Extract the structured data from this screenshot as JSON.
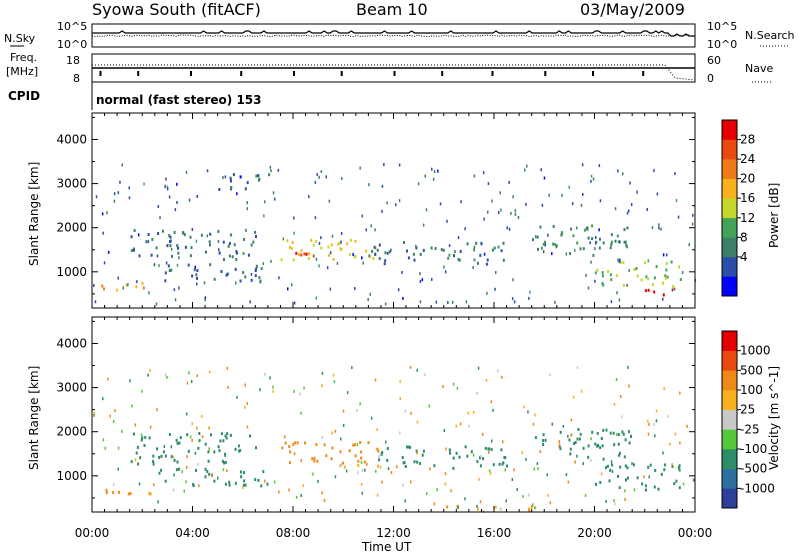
{
  "header": {
    "title": "Syowa South (fitACF)",
    "beam": "Beam 10",
    "date": "03/May/2009"
  },
  "nsky_panel": {
    "label": "N.Sky",
    "right_label": "N.Search",
    "ytick_top": "10^5",
    "ytick_bottom": "10^0",
    "right_tick_top": "10^5",
    "right_tick_bottom": "10^0"
  },
  "freq_panel": {
    "label_line1": "Freq.",
    "label_line2": "[MHz]",
    "ytick_top": "18",
    "ytick_bottom": "8",
    "right_tick_top": "60",
    "right_tick_bottom": "0",
    "right_label": "Nave"
  },
  "cpid_panel": {
    "label": "CPID",
    "text": "normal (fast stereo) 153"
  },
  "power_colorbar": {
    "label": "Power [dB]",
    "ticks": [
      "28",
      "24",
      "20",
      "16",
      "12",
      "8",
      "4"
    ],
    "colors": [
      "#0000ff",
      "#2b4fa8",
      "#3e7f6a",
      "#43a356",
      "#c5d72a",
      "#f7b21e",
      "#ef7a17",
      "#e94a12",
      "#e40000"
    ]
  },
  "velocity_colorbar": {
    "label": "Velocity [m s^-1]",
    "ticks": [
      "1000",
      "500",
      "100",
      "25",
      "-25",
      "-100",
      "-500",
      "-1000"
    ],
    "colors": [
      "#2c3f99",
      "#2d6f9e",
      "#2e8c66",
      "#57c83c",
      "#c8c8c8",
      "#f7b21e",
      "#ef8a17",
      "#e94a12",
      "#e40000"
    ]
  },
  "chart_data": [
    {
      "type": "heatmap",
      "title": "Power",
      "ylabel": "Slant Range [km]",
      "ylim": [
        180,
        4600
      ],
      "yticks": [
        "1000",
        "2000",
        "3000",
        "4000"
      ],
      "xlabel": "Time UT",
      "xlim": [
        "00:00",
        "24:00"
      ],
      "xticks": [
        "00:00",
        "04:00",
        "08:00",
        "12:00",
        "16:00",
        "20:00",
        "00:00"
      ],
      "colorbar": "Power [dB]",
      "regions": [
        {
          "t": [
            0.3,
            2.5
          ],
          "r": [
            600,
            800
          ],
          "value_db": 20
        },
        {
          "t": [
            1.5,
            6.5
          ],
          "r": [
            1300,
            2000
          ],
          "value_db": 8
        },
        {
          "t": [
            2.5,
            7.0
          ],
          "r": [
            800,
            1200
          ],
          "value_db": 6
        },
        {
          "t": [
            5.0,
            7.2
          ],
          "r": [
            2900,
            3300
          ],
          "value_db": 6
        },
        {
          "t": [
            7.5,
            11.5
          ],
          "r": [
            1300,
            1800
          ],
          "value_db": 18
        },
        {
          "t": [
            8.0,
            10.0
          ],
          "r": [
            1350,
            1500
          ],
          "value_db": 26
        },
        {
          "t": [
            11.0,
            16.5
          ],
          "r": [
            1200,
            1700
          ],
          "value_db": 8
        },
        {
          "t": [
            17.5,
            21.5
          ],
          "r": [
            1400,
            2100
          ],
          "value_db": 10
        },
        {
          "t": [
            20.0,
            23.5
          ],
          "r": [
            700,
            1300
          ],
          "value_db": 14
        },
        {
          "t": [
            21.5,
            23.5
          ],
          "r": [
            500,
            650
          ],
          "value_db": 28
        }
      ]
    },
    {
      "type": "heatmap",
      "title": "Velocity",
      "ylabel": "Slant Range [km]",
      "ylim": [
        180,
        4600
      ],
      "yticks": [
        "1000",
        "2000",
        "3000",
        "4000"
      ],
      "xlabel": "Time UT",
      "xlim": [
        "00:00",
        "24:00"
      ],
      "xticks": [
        "00:00",
        "04:00",
        "08:00",
        "12:00",
        "16:00",
        "20:00",
        "00:00"
      ],
      "colorbar": "Velocity [m s^-1]",
      "regions": [
        {
          "t": [
            0.3,
            2.5
          ],
          "r": [
            600,
            800
          ],
          "value_ms": 300
        },
        {
          "t": [
            1.5,
            6.5
          ],
          "r": [
            1300,
            2000
          ],
          "value_ms": -200
        },
        {
          "t": [
            2.5,
            7.0
          ],
          "r": [
            800,
            1200
          ],
          "value_ms": -300
        },
        {
          "t": [
            7.5,
            11.5
          ],
          "r": [
            1300,
            1800
          ],
          "value_ms": 200
        },
        {
          "t": [
            9.5,
            11.0
          ],
          "r": [
            1150,
            1300
          ],
          "value_ms": 0
        },
        {
          "t": [
            11.0,
            16.5
          ],
          "r": [
            1200,
            1700
          ],
          "value_ms": -300
        },
        {
          "t": [
            17.5,
            21.5
          ],
          "r": [
            1400,
            2100
          ],
          "value_ms": -300
        },
        {
          "t": [
            20.0,
            23.5
          ],
          "r": [
            700,
            1300
          ],
          "value_ms": -400
        },
        {
          "t": [
            13.5,
            17.5
          ],
          "r": [
            200,
            350
          ],
          "value_ms": 60
        }
      ]
    }
  ]
}
